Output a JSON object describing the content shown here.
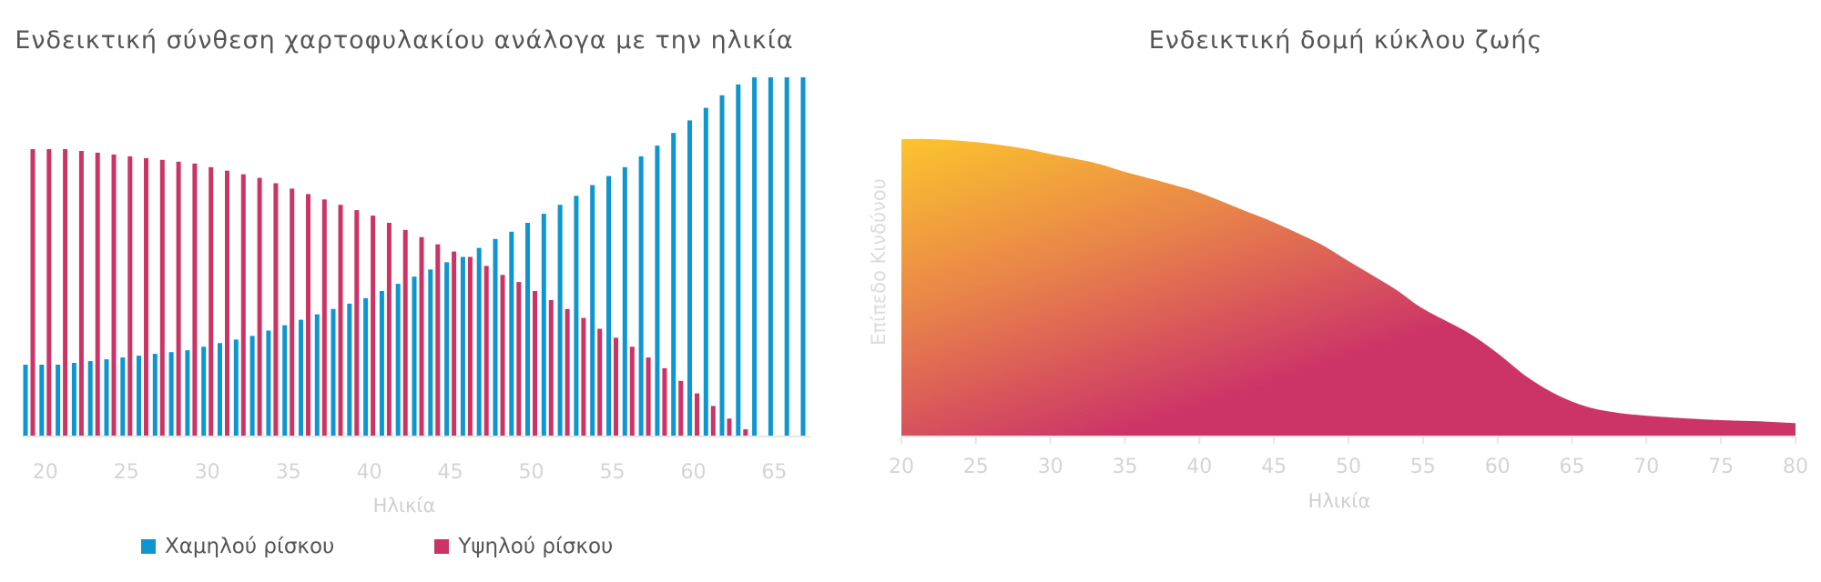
{
  "chart_data": [
    {
      "type": "bar",
      "title": "Ενδεικτική σύνθεση χαρτοφυλακίου ανάλογα με την ηλικία",
      "xlabel": "Ηλικία",
      "ylabel": "",
      "ylim": [
        0,
        100
      ],
      "x_ticks": [
        20,
        25,
        30,
        35,
        40,
        45,
        50,
        55,
        60,
        65
      ],
      "categories": [
        19,
        20,
        21,
        22,
        23,
        24,
        25,
        26,
        27,
        28,
        29,
        30,
        31,
        32,
        33,
        34,
        35,
        36,
        37,
        38,
        39,
        40,
        41,
        42,
        43,
        44,
        45,
        46,
        47,
        48,
        49,
        50,
        51,
        52,
        53,
        54,
        55,
        56,
        57,
        58,
        59,
        60,
        61,
        62,
        63,
        64,
        65,
        66,
        67
      ],
      "series": [
        {
          "name": "Χαμηλού ρίσκου",
          "color": "#0e96cf",
          "values": [
            20,
            20,
            20,
            20.5,
            21,
            21.5,
            22,
            22.5,
            23,
            23.5,
            24,
            25,
            26,
            27,
            28,
            29.5,
            31,
            32.5,
            34,
            35.5,
            37,
            38.5,
            40.5,
            42.5,
            44.5,
            46.5,
            48.5,
            50,
            52.5,
            55,
            57,
            59.5,
            62,
            64.5,
            67,
            70,
            72.5,
            75,
            78,
            81,
            84.5,
            88,
            91.5,
            95,
            98,
            100,
            100,
            100,
            100
          ]
        },
        {
          "name": "Υψηλού ρίσκου",
          "color": "#cc3466",
          "values": [
            80,
            80,
            80,
            79.5,
            79,
            78.5,
            78,
            77.5,
            77,
            76.5,
            76,
            75,
            74,
            73,
            72,
            70.5,
            69,
            67.5,
            66,
            64.5,
            63,
            61.5,
            59.5,
            57.5,
            55.5,
            53.5,
            51.5,
            50,
            47.5,
            45,
            43,
            40.5,
            38,
            35.5,
            33,
            30,
            27.5,
            25,
            22,
            19,
            15.5,
            12,
            8.5,
            5,
            2,
            0,
            0,
            0,
            0
          ]
        }
      ],
      "legend": "bottom"
    },
    {
      "type": "area",
      "title": "Ενδεικτική δομή κύκλου ζωής",
      "xlabel": "Ηλικία",
      "ylabel": "Επίπεδο Κινδύνου",
      "x_ticks": [
        20,
        25,
        30,
        35,
        40,
        45,
        50,
        55,
        60,
        65,
        70,
        75,
        80
      ],
      "xlim": [
        20,
        80
      ],
      "ylim": [
        0,
        100
      ],
      "x": [
        20,
        22,
        25,
        28,
        30,
        33,
        35,
        38,
        40,
        43,
        45,
        48,
        50,
        53,
        55,
        58,
        60,
        62,
        64,
        66,
        68,
        70,
        73,
        75,
        78,
        80
      ],
      "y": [
        100,
        100,
        99,
        97,
        95,
        92,
        89,
        85,
        82,
        76,
        72,
        65,
        59,
        50,
        43,
        35,
        28,
        20,
        14,
        10,
        8,
        7,
        6,
        5.5,
        5,
        4.5
      ],
      "gradient_colors": [
        "#fcc42d",
        "#e8834a",
        "#cc3468"
      ]
    }
  ]
}
